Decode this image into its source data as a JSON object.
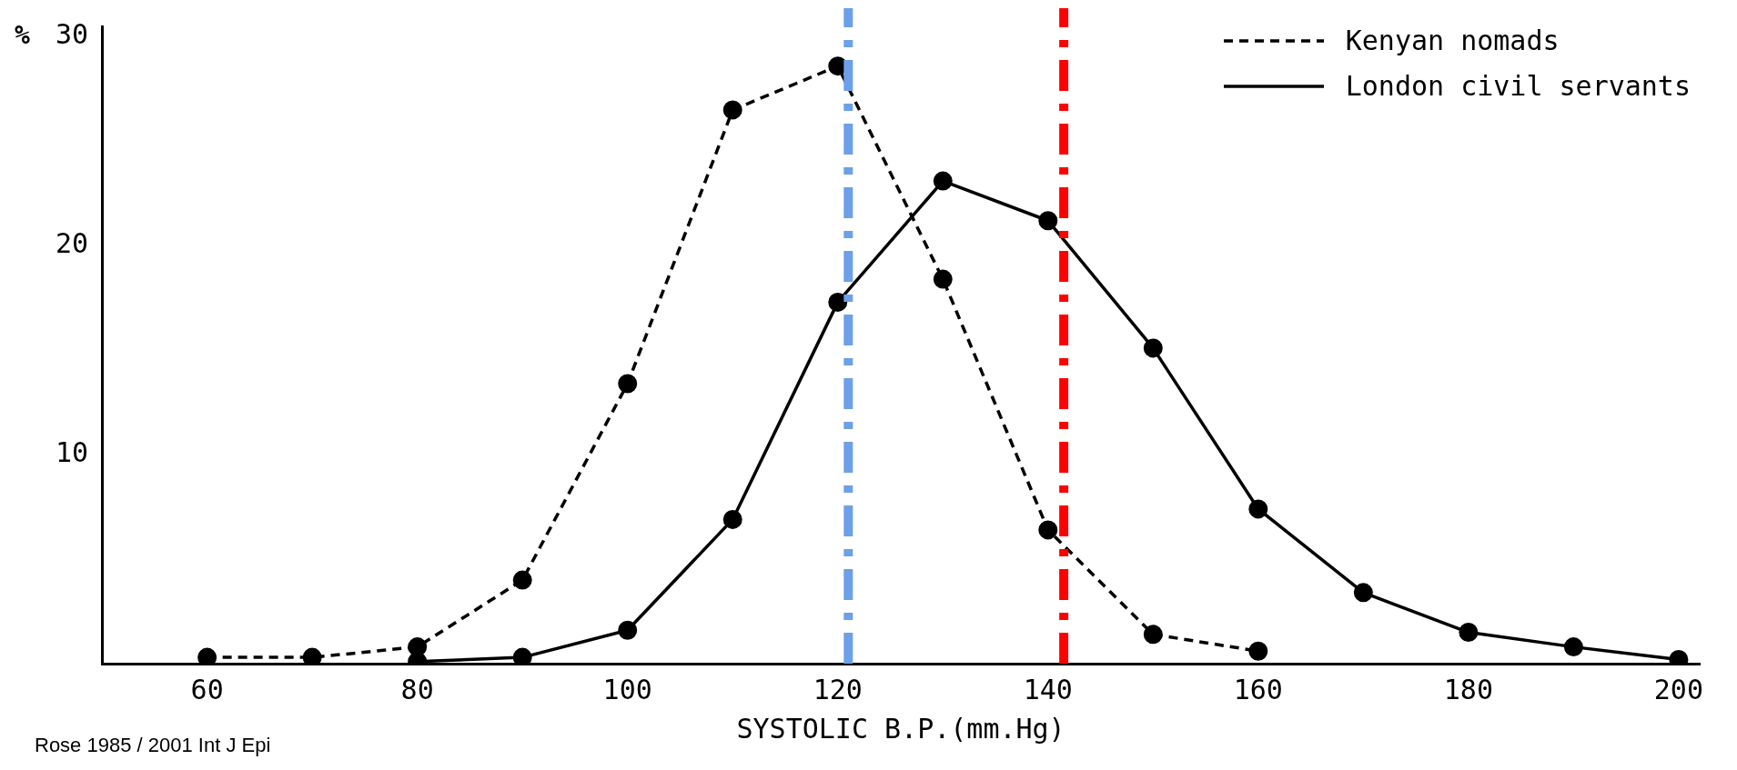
{
  "chart_data": {
    "type": "line",
    "ylabel": "%",
    "xlabel": "SYSTOLIC B.P.(mm.Hg)",
    "xlim": [
      50,
      202
    ],
    "xticks": [
      60,
      80,
      100,
      120,
      140,
      160,
      180,
      200
    ],
    "ylim": [
      0,
      30.5
    ],
    "yticks": [
      10,
      20,
      30
    ],
    "grid": false,
    "legend": "top right",
    "marker": "circle",
    "series": [
      {
        "name": "Kenyan nomads",
        "color": "#000000",
        "line_style": "dashed",
        "x": [
          60,
          70,
          80,
          90,
          100,
          110,
          120,
          130,
          140,
          150,
          160
        ],
        "values": [
          0.3,
          0.3,
          0.8,
          4.0,
          13.4,
          26.5,
          28.6,
          18.4,
          6.4,
          1.4,
          0.6
        ]
      },
      {
        "name": "London civil servants",
        "color": "#000000",
        "line_style": "solid",
        "x": [
          80,
          90,
          100,
          110,
          120,
          130,
          140,
          150,
          160,
          170,
          180,
          190,
          200
        ],
        "values": [
          0.1,
          0.3,
          1.6,
          6.9,
          17.3,
          23.1,
          21.2,
          15.1,
          7.4,
          3.4,
          1.5,
          0.8,
          0.2
        ]
      }
    ],
    "ref_lines": [
      {
        "axis": "x",
        "value": 121,
        "color": "#6ca0e8",
        "line_style": "dashdot"
      },
      {
        "axis": "x",
        "value": 141.5,
        "color": "#ff0000",
        "line_style": "dashdot"
      }
    ],
    "annotations": [
      "Rose 1985 / 2001 Int J Epi"
    ]
  }
}
